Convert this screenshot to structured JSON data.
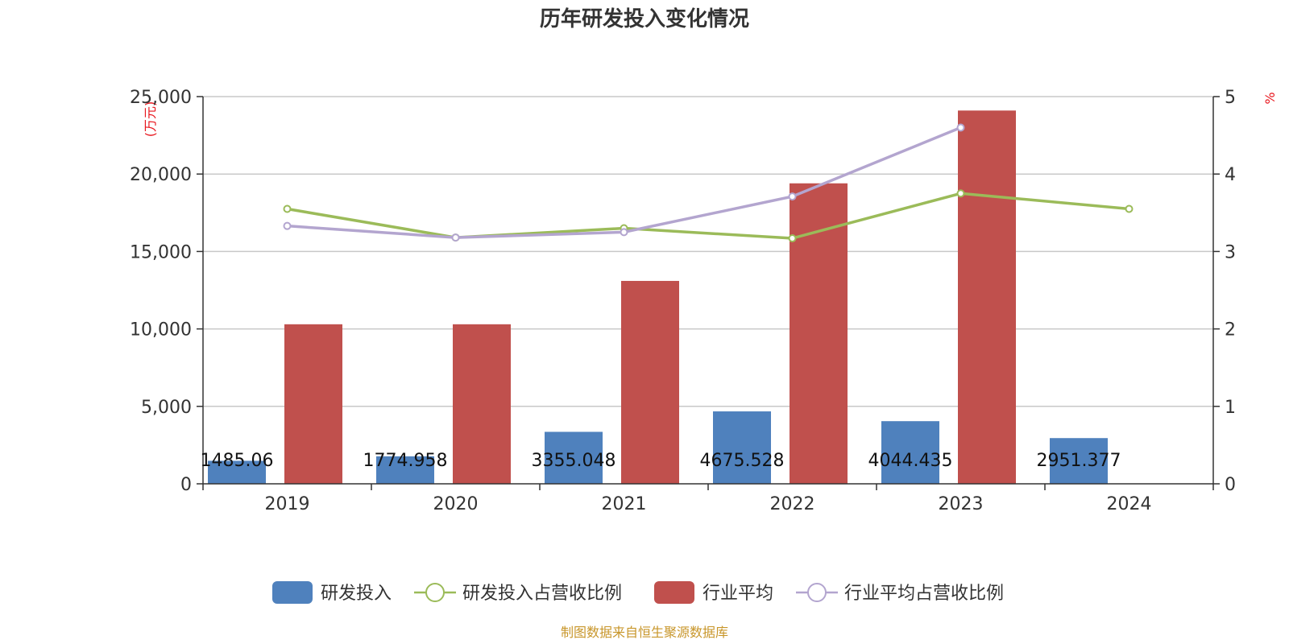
{
  "chart_data": {
    "type": "bar",
    "title": "历年研发投入变化情况",
    "categories": [
      "2019",
      "2020",
      "2021",
      "2022",
      "2023",
      "2024"
    ],
    "y_left": {
      "unit": "(万元)",
      "range": [
        0,
        25000
      ],
      "ticks": [
        0,
        5000,
        10000,
        15000,
        20000,
        25000
      ],
      "tick_labels": [
        "0",
        "5,000",
        "10,000",
        "15,000",
        "20,000",
        "25,000"
      ]
    },
    "y_right": {
      "unit": "%",
      "range": [
        0,
        5
      ],
      "ticks": [
        0,
        1,
        2,
        3,
        4,
        5
      ],
      "tick_labels": [
        "0",
        "1",
        "2",
        "3",
        "4",
        "5"
      ]
    },
    "grid": true,
    "legend_position": "bottom",
    "series": [
      {
        "name": "研发投入",
        "type": "bar",
        "axis": "left",
        "color": "#4f81bd",
        "values": [
          1485.06,
          1774.958,
          3355.048,
          4675.528,
          4044.435,
          2951.377
        ],
        "labels": [
          "1485.06",
          "1774.958",
          "3355.048",
          "4675.528",
          "4044.435",
          "2951.377"
        ]
      },
      {
        "name": "研发投入占营收比例",
        "type": "line",
        "axis": "right",
        "color": "#9bbb59",
        "values": [
          3.55,
          3.18,
          3.3,
          3.17,
          3.75,
          3.55
        ]
      },
      {
        "name": "行业平均",
        "type": "bar",
        "axis": "left",
        "color": "#c0504d",
        "values": [
          10300,
          10300,
          13100,
          19400,
          24100,
          null
        ]
      },
      {
        "name": "行业平均占营收比例",
        "type": "line",
        "axis": "right",
        "color": "#b3a5cf",
        "values": [
          3.33,
          3.18,
          3.25,
          3.71,
          4.6,
          null
        ]
      }
    ],
    "source": "制图数据来自恒生聚源数据库"
  }
}
